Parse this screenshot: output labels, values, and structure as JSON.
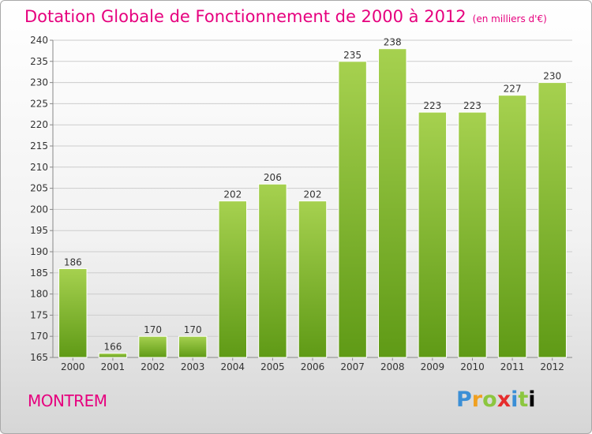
{
  "header": {
    "title": "Dotation Globale de Fonctionnement de 2000 à 2012",
    "unit": "(en milliers d'€)"
  },
  "footer": {
    "commune": "MONTREM",
    "logo_letters": [
      "P",
      "r",
      "o",
      "x",
      "i",
      "t",
      "i"
    ]
  },
  "colors": {
    "bar_top": "#a6d14f",
    "bar_bottom": "#5f9a16",
    "title": "#e6007e",
    "grid": "#cccccc"
  },
  "chart_data": {
    "type": "bar",
    "categories": [
      "2000",
      "2001",
      "2002",
      "2003",
      "2004",
      "2005",
      "2006",
      "2007",
      "2008",
      "2009",
      "2010",
      "2011",
      "2012"
    ],
    "values": [
      186,
      166,
      170,
      170,
      202,
      206,
      202,
      235,
      238,
      223,
      223,
      227,
      230
    ],
    "ylim": [
      165,
      240
    ],
    "yticks": [
      165,
      170,
      175,
      180,
      185,
      190,
      195,
      200,
      205,
      210,
      215,
      220,
      225,
      230,
      235,
      240
    ],
    "grid": true,
    "data_labels": true
  }
}
